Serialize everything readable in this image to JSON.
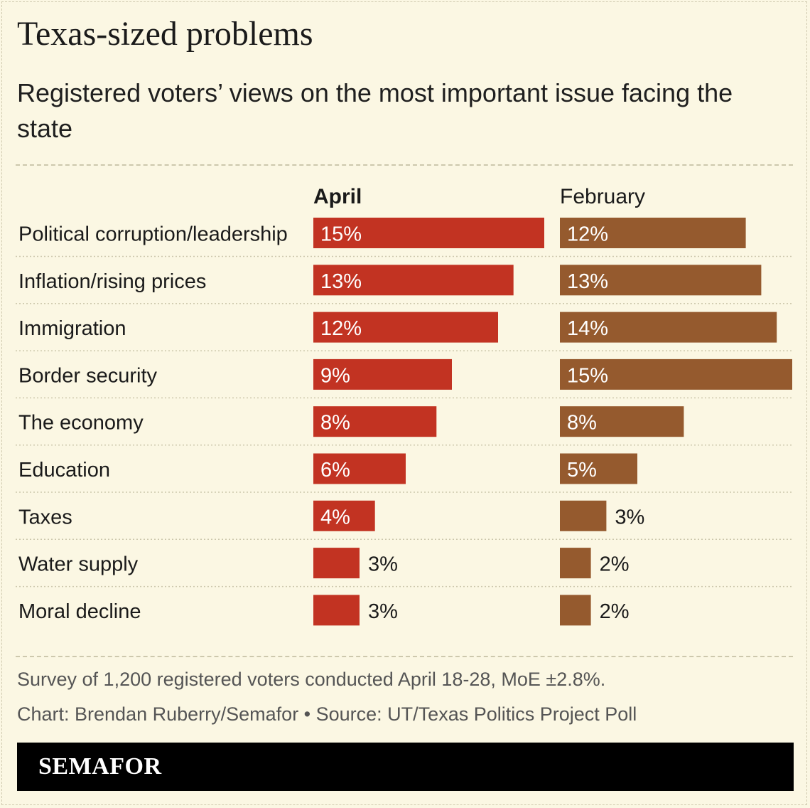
{
  "title": "Texas-sized problems",
  "subtitle": "Registered voters’ views on the most important issue facing the state",
  "footer": {
    "survey": "Survey of 1,200 registered voters conducted April 18-28, MoE ±2.8%.",
    "credit": "Chart: Brendan Ruberry/Semafor • Source: UT/Texas Politics Project Poll",
    "brand": "SEMAFOR"
  },
  "colors": {
    "april": "#c23322",
    "february": "#955a2e",
    "background": "#fbf7e3",
    "gridline": "#cdc8ad"
  },
  "chart_data": {
    "type": "bar",
    "orientation": "horizontal",
    "categories": [
      "Political corruption/leadership",
      "Inflation/rising prices",
      "Immigration",
      "Border security",
      "The economy",
      "Education",
      "Taxes",
      "Water supply",
      "Moral decline"
    ],
    "series": [
      {
        "name": "April",
        "emphasis": "bold",
        "values": [
          15,
          13,
          12,
          9,
          8,
          6,
          4,
          3,
          3
        ],
        "labels": [
          "15%",
          "13%",
          "12%",
          "9%",
          "8%",
          "6%",
          "4%",
          "3%",
          "3%"
        ]
      },
      {
        "name": "February",
        "emphasis": "normal",
        "values": [
          12,
          13,
          14,
          15,
          8,
          5,
          3,
          2,
          2
        ],
        "labels": [
          "12%",
          "13%",
          "14%",
          "15%",
          "8%",
          "5%",
          "3%",
          "2%",
          "2%"
        ]
      }
    ],
    "xlim": [
      0,
      15
    ],
    "value_suffix": "%",
    "legend": "column headers"
  }
}
